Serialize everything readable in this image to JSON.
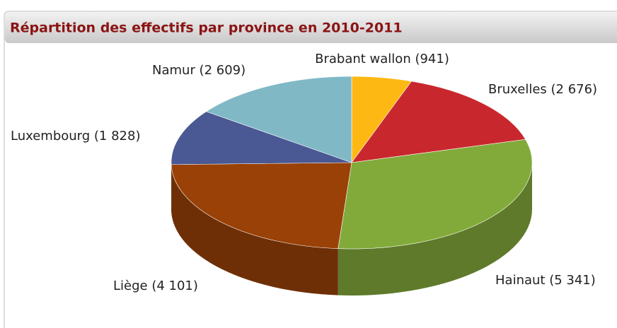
{
  "chart_data": {
    "type": "pie3d",
    "title": "Répartition des effectifs par province en 2010-2011",
    "values": [
      941,
      2676,
      5341,
      4101,
      1828,
      2609
    ],
    "value_labels": [
      "Brabant wallon (941)",
      "Bruxelles (2 676)",
      "Hainaut (5 341)",
      "Liège (4 101)",
      "Luxembourg (1 828)",
      "Namur (2 609)"
    ],
    "colors": [
      "#fdb813",
      "#c8282d",
      "#82aa3a",
      "#9a4108",
      "#4a5893",
      "#80b8c6"
    ]
  }
}
